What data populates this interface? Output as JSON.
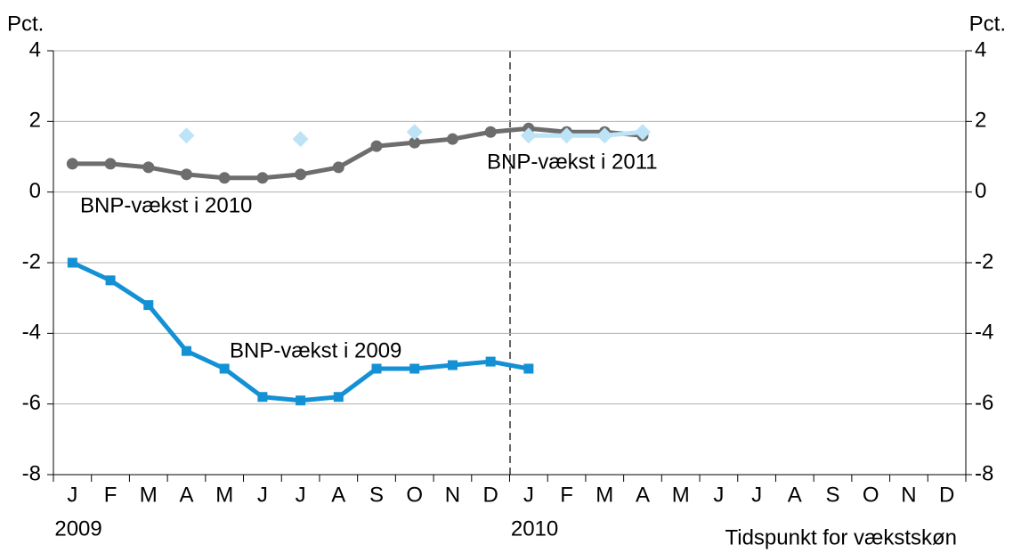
{
  "chart_data": {
    "type": "line",
    "ylabel": "Pct.",
    "y2label": "Pct.",
    "xlabel": "Tidspunkt for vækstskøn",
    "categories": [
      "J",
      "F",
      "M",
      "A",
      "M",
      "J",
      "J",
      "A",
      "S",
      "O",
      "N",
      "D",
      "J",
      "F",
      "M",
      "A",
      "M",
      "J",
      "J",
      "A",
      "S",
      "O",
      "N",
      "D"
    ],
    "year_labels": [
      "2009",
      "2010"
    ],
    "ylim": [
      -8,
      4
    ],
    "yticks": [
      -8,
      -6,
      -4,
      -2,
      0,
      2,
      4
    ],
    "y2lim": [
      -8,
      4
    ],
    "y2ticks": [
      -8,
      -6,
      -4,
      -2,
      0,
      2,
      4
    ],
    "grid": true,
    "series": [
      {
        "name": "BNP-vækst i 2010",
        "color": "#6d6d6d",
        "marker": "circle",
        "values": [
          0.8,
          0.8,
          0.7,
          0.5,
          0.4,
          0.4,
          0.5,
          0.7,
          1.3,
          1.4,
          1.5,
          1.7,
          1.8,
          1.7,
          1.7,
          1.6,
          null,
          null,
          null,
          null,
          null,
          null,
          null,
          null
        ]
      },
      {
        "name": "BNP-vækst i 2009",
        "color": "#1490d4",
        "marker": "square",
        "values": [
          -2,
          -2.5,
          -3.2,
          -4.5,
          -5.0,
          -5.8,
          -5.9,
          -5.8,
          -5.0,
          -5.0,
          -4.9,
          -4.8,
          -5.0,
          null,
          null,
          null,
          null,
          null,
          null,
          null,
          null,
          null,
          null,
          null
        ]
      },
      {
        "name": "BNP-vækst i 2011",
        "color": "#bde3f7",
        "marker": "diamond",
        "values": [
          null,
          null,
          null,
          1.6,
          null,
          null,
          1.5,
          null,
          null,
          1.7,
          null,
          null,
          1.6,
          1.6,
          1.6,
          1.7,
          null,
          null,
          null,
          null,
          null,
          null,
          null,
          null
        ]
      }
    ]
  }
}
